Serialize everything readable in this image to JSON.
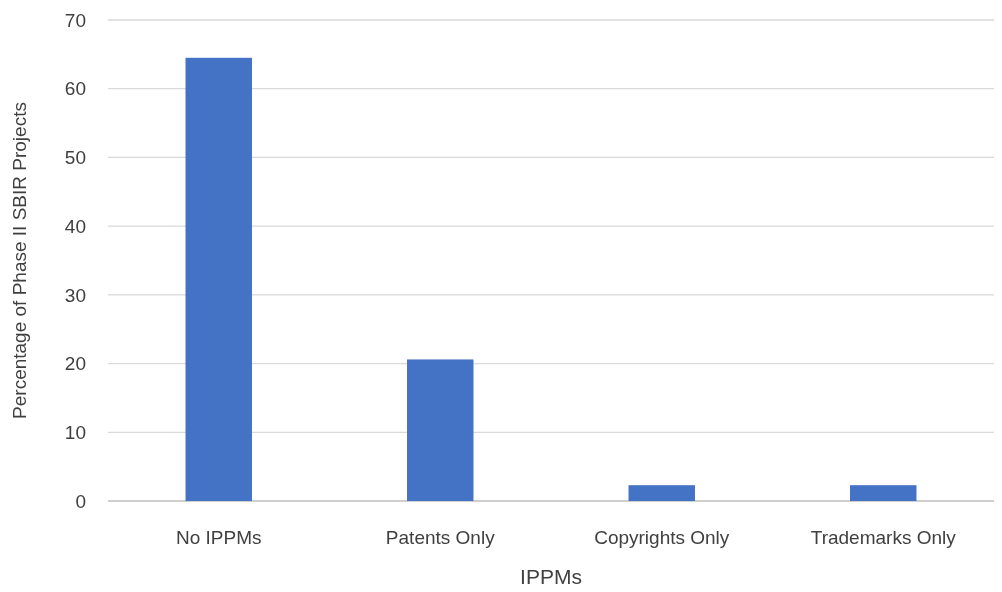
{
  "chart_data": {
    "type": "bar",
    "xlabel": "IPPMs",
    "ylabel": "Percentage of Phase II SBIR Projects",
    "categories": [
      "No IPPMs",
      "Patents Only",
      "Copyrights Only",
      "Trademarks Only"
    ],
    "values": [
      64.5,
      20.6,
      2.3,
      2.3
    ],
    "color": "#4472c4",
    "ylim": [
      0,
      70
    ],
    "yticks": [
      0,
      10,
      20,
      30,
      40,
      50,
      60,
      70
    ],
    "grid": "y"
  }
}
